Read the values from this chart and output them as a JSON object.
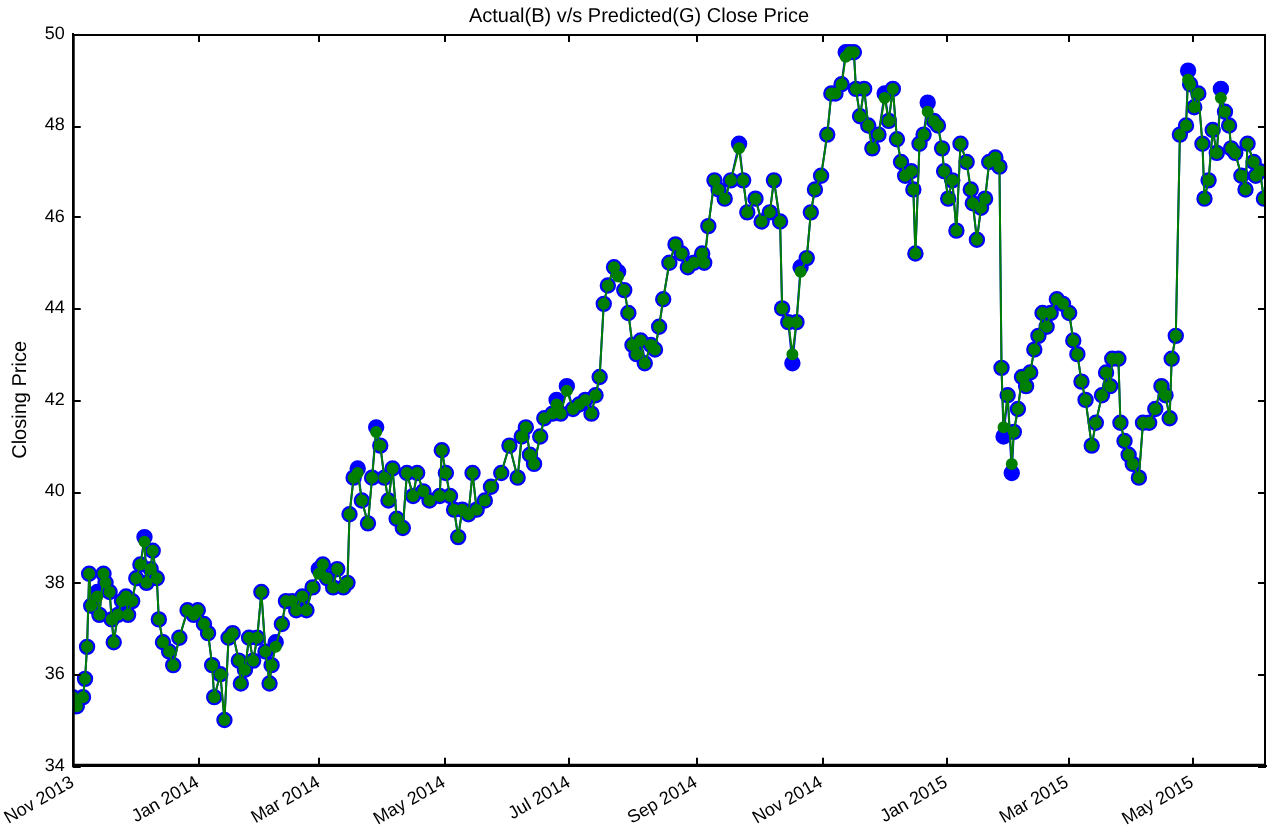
{
  "chart_data": {
    "type": "line",
    "title": "Actual(B) v/s Predicted(G) Close Price",
    "ylabel": "Closing Price",
    "x": [
      "2013-11-01",
      "2013-11-03",
      "2013-11-06",
      "2013-11-07",
      "2013-11-08",
      "2013-11-09",
      "2013-11-10",
      "2013-11-13",
      "2013-11-14",
      "2013-11-16",
      "2013-11-17",
      "2013-11-19",
      "2013-11-20",
      "2013-11-21",
      "2013-11-23",
      "2013-11-25",
      "2013-11-27",
      "2013-11-28",
      "2013-11-30",
      "2013-12-02",
      "2013-12-04",
      "2013-12-06",
      "2013-12-07",
      "2013-12-09",
      "2013-12-10",
      "2013-12-12",
      "2013-12-13",
      "2013-12-15",
      "2013-12-18",
      "2013-12-20",
      "2013-12-23",
      "2013-12-27",
      "2013-12-30",
      "2014-01-01",
      "2014-01-04",
      "2014-01-06",
      "2014-01-08",
      "2014-01-09",
      "2014-01-12",
      "2014-01-14",
      "2014-01-16",
      "2014-01-18",
      "2014-01-21",
      "2014-01-22",
      "2014-01-24",
      "2014-01-26",
      "2014-01-28",
      "2014-01-30",
      "2014-02-01",
      "2014-02-03",
      "2014-02-05",
      "2014-02-06",
      "2014-02-08",
      "2014-02-11",
      "2014-02-13",
      "2014-02-16",
      "2014-02-18",
      "2014-02-21",
      "2014-02-23",
      "2014-02-26",
      "2014-03-01",
      "2014-03-03",
      "2014-03-05",
      "2014-03-08",
      "2014-03-10",
      "2014-03-13",
      "2014-03-15",
      "2014-03-16",
      "2014-03-18",
      "2014-03-20",
      "2014-03-22",
      "2014-03-25",
      "2014-03-27",
      "2014-03-29",
      "2014-03-31",
      "2014-04-02",
      "2014-04-04",
      "2014-04-06",
      "2014-04-08",
      "2014-04-11",
      "2014-04-13",
      "2014-04-16",
      "2014-04-18",
      "2014-04-21",
      "2014-04-24",
      "2014-04-29",
      "2014-04-30",
      "2014-05-02",
      "2014-05-04",
      "2014-05-06",
      "2014-05-08",
      "2014-05-10",
      "2014-05-13",
      "2014-05-15",
      "2014-05-17",
      "2014-05-21",
      "2014-05-24",
      "2014-05-29",
      "2014-06-02",
      "2014-06-06",
      "2014-06-08",
      "2014-06-10",
      "2014-06-12",
      "2014-06-14",
      "2014-06-17",
      "2014-06-19",
      "2014-06-23",
      "2014-06-25",
      "2014-06-27",
      "2014-06-30",
      "2014-07-03",
      "2014-07-06",
      "2014-07-09",
      "2014-07-12",
      "2014-07-14",
      "2014-07-16",
      "2014-07-18",
      "2014-07-20",
      "2014-07-23",
      "2014-07-25",
      "2014-07-28",
      "2014-07-30",
      "2014-08-01",
      "2014-08-03",
      "2014-08-05",
      "2014-08-07",
      "2014-08-10",
      "2014-08-12",
      "2014-08-14",
      "2014-08-16",
      "2014-08-19",
      "2014-08-22",
      "2014-08-25",
      "2014-08-28",
      "2014-08-31",
      "2014-09-04",
      "2014-09-05",
      "2014-09-07",
      "2014-09-10",
      "2014-09-12",
      "2014-09-15",
      "2014-09-18",
      "2014-09-22",
      "2014-09-24",
      "2014-09-26",
      "2014-09-30",
      "2014-10-03",
      "2014-10-07",
      "2014-10-09",
      "2014-10-12",
      "2014-10-13",
      "2014-10-16",
      "2014-10-18",
      "2014-10-20",
      "2014-10-22",
      "2014-10-25",
      "2014-10-27",
      "2014-10-29",
      "2014-11-01",
      "2014-11-04",
      "2014-11-06",
      "2014-11-08",
      "2014-11-11",
      "2014-11-13",
      "2014-11-15",
      "2014-11-17",
      "2014-11-18",
      "2014-11-20",
      "2014-11-22",
      "2014-11-24",
      "2014-11-26",
      "2014-11-29",
      "2014-12-02",
      "2014-12-04",
      "2014-12-06",
      "2014-12-08",
      "2014-12-10",
      "2014-12-12",
      "2014-12-15",
      "2014-12-16",
      "2014-12-17",
      "2014-12-19",
      "2014-12-21",
      "2014-12-23",
      "2014-12-26",
      "2014-12-28",
      "2014-12-30",
      "2014-12-31",
      "2015-01-02",
      "2015-01-04",
      "2015-01-06",
      "2015-01-08",
      "2015-01-11",
      "2015-01-13",
      "2015-01-14",
      "2015-01-16",
      "2015-01-18",
      "2015-01-20",
      "2015-01-22",
      "2015-01-25",
      "2015-01-27",
      "2015-01-28",
      "2015-01-29",
      "2015-01-31",
      "2015-02-02",
      "2015-02-03",
      "2015-02-05",
      "2015-02-07",
      "2015-02-09",
      "2015-02-11",
      "2015-02-13",
      "2015-02-15",
      "2015-02-17",
      "2015-02-19",
      "2015-02-21",
      "2015-02-24",
      "2015-02-27",
      "2015-03-02",
      "2015-03-04",
      "2015-03-06",
      "2015-03-08",
      "2015-03-10",
      "2015-03-13",
      "2015-03-15",
      "2015-03-18",
      "2015-03-20",
      "2015-03-22",
      "2015-03-23",
      "2015-03-26",
      "2015-03-27",
      "2015-03-29",
      "2015-03-31",
      "2015-04-02",
      "2015-04-05",
      "2015-04-07",
      "2015-04-10",
      "2015-04-13",
      "2015-04-16",
      "2015-04-18",
      "2015-04-20",
      "2015-04-21",
      "2015-04-23",
      "2015-04-25",
      "2015-04-28",
      "2015-04-29",
      "2015-04-30",
      "2015-05-02",
      "2015-05-04",
      "2015-05-06",
      "2015-05-07",
      "2015-05-09",
      "2015-05-11",
      "2015-05-13",
      "2015-05-15",
      "2015-05-17",
      "2015-05-19",
      "2015-05-20",
      "2015-05-22",
      "2015-05-25",
      "2015-05-27",
      "2015-05-28",
      "2015-05-31",
      "2015-06-01",
      "2015-06-03",
      "2015-06-05"
    ],
    "series": [
      {
        "color": "#0000ff",
        "values": [
          35.5,
          35.3,
          35.5,
          35.9,
          36.6,
          38.2,
          37.5,
          37.8,
          37.3,
          38.2,
          38.0,
          37.8,
          37.2,
          36.7,
          37.3,
          37.6,
          37.7,
          37.3,
          37.6,
          38.1,
          38.4,
          39.0,
          38.0,
          38.3,
          38.7,
          38.1,
          37.2,
          36.7,
          36.5,
          36.2,
          36.8,
          37.4,
          37.3,
          37.4,
          37.1,
          36.9,
          36.2,
          35.5,
          36.0,
          35.0,
          36.8,
          36.9,
          36.3,
          35.8,
          36.1,
          36.8,
          36.3,
          36.8,
          37.8,
          36.5,
          35.8,
          36.2,
          36.7,
          37.1,
          37.6,
          37.6,
          37.4,
          37.7,
          37.4,
          37.9,
          38.3,
          38.4,
          38.1,
          37.9,
          38.3,
          37.9,
          38.0,
          39.5,
          40.3,
          40.5,
          39.8,
          39.3,
          40.3,
          41.4,
          41.0,
          40.3,
          39.8,
          40.5,
          39.4,
          39.2,
          40.4,
          39.9,
          40.4,
          40.0,
          39.8,
          39.9,
          40.9,
          40.4,
          39.9,
          39.6,
          39.0,
          39.6,
          39.5,
          40.4,
          39.6,
          39.8,
          40.1,
          40.4,
          41.0,
          40.3,
          41.2,
          41.4,
          40.8,
          40.6,
          41.2,
          41.6,
          41.7,
          42.0,
          41.7,
          42.3,
          41.8,
          41.9,
          42.0,
          41.7,
          42.1,
          42.5,
          44.1,
          44.5,
          44.9,
          44.8,
          44.4,
          43.9,
          43.2,
          43.0,
          43.3,
          42.8,
          43.2,
          43.1,
          43.6,
          44.2,
          45.0,
          45.4,
          45.2,
          44.9,
          45.0,
          45.2,
          45.0,
          45.8,
          46.8,
          46.6,
          46.4,
          46.8,
          47.6,
          46.8,
          46.1,
          46.4,
          45.9,
          46.1,
          46.8,
          45.9,
          44.0,
          43.7,
          42.8,
          43.7,
          44.9,
          45.1,
          46.1,
          46.6,
          46.9,
          47.8,
          48.7,
          48.7,
          48.9,
          49.6,
          49.6,
          49.6,
          48.8,
          48.2,
          48.8,
          48.0,
          47.5,
          47.8,
          48.7,
          48.1,
          48.8,
          47.7,
          47.2,
          46.9,
          47.0,
          46.6,
          45.2,
          47.6,
          47.8,
          48.5,
          48.1,
          48.0,
          47.5,
          47.0,
          46.4,
          46.8,
          45.7,
          47.6,
          47.2,
          46.6,
          46.3,
          45.5,
          46.2,
          46.4,
          47.2,
          47.3,
          47.1,
          42.7,
          41.2,
          42.1,
          40.4,
          41.3,
          41.8,
          42.5,
          42.3,
          42.6,
          43.1,
          43.4,
          43.9,
          43.6,
          43.9,
          44.2,
          44.1,
          43.9,
          43.3,
          43.0,
          42.4,
          42.0,
          41.0,
          41.5,
          42.1,
          42.6,
          42.3,
          42.9,
          42.9,
          41.5,
          41.1,
          40.8,
          40.6,
          40.3,
          41.5,
          41.5,
          41.8,
          42.3,
          42.1,
          41.6,
          42.9,
          43.4,
          47.8,
          48.0,
          49.2,
          48.9,
          48.4,
          48.7,
          47.6,
          46.4,
          46.8,
          47.9,
          47.4,
          48.8,
          48.3,
          48.0,
          47.5,
          47.4,
          46.9,
          46.6,
          47.6,
          47.2,
          46.9,
          47.0,
          46.4
        ]
      },
      {
        "color": "#007f00",
        "values": [
          35.5,
          35.3,
          35.5,
          35.9,
          36.6,
          38.2,
          37.5,
          37.7,
          37.3,
          38.2,
          38.0,
          37.8,
          37.2,
          36.7,
          37.3,
          37.6,
          37.7,
          37.3,
          37.6,
          38.1,
          38.4,
          38.9,
          38.0,
          38.3,
          38.7,
          38.1,
          37.2,
          36.7,
          36.5,
          36.2,
          36.8,
          37.4,
          37.3,
          37.4,
          37.1,
          36.9,
          36.2,
          35.5,
          36.0,
          35.0,
          36.8,
          36.9,
          36.3,
          35.8,
          36.1,
          36.8,
          36.3,
          36.8,
          37.8,
          36.5,
          35.8,
          36.2,
          36.6,
          37.1,
          37.6,
          37.6,
          37.4,
          37.7,
          37.4,
          37.9,
          38.2,
          38.4,
          38.1,
          37.9,
          38.3,
          37.9,
          38.0,
          39.5,
          40.3,
          40.4,
          39.8,
          39.3,
          40.3,
          41.3,
          41.0,
          40.3,
          39.8,
          40.5,
          39.4,
          39.2,
          40.4,
          39.9,
          40.4,
          40.0,
          39.8,
          39.9,
          40.9,
          40.4,
          39.9,
          39.6,
          39.0,
          39.6,
          39.5,
          40.4,
          39.6,
          39.8,
          40.1,
          40.4,
          41.0,
          40.3,
          41.2,
          41.4,
          40.8,
          40.6,
          41.2,
          41.6,
          41.7,
          41.9,
          41.7,
          42.2,
          41.8,
          41.9,
          42.0,
          41.7,
          42.1,
          42.5,
          44.1,
          44.5,
          44.9,
          44.7,
          44.4,
          43.9,
          43.2,
          43.0,
          43.3,
          42.8,
          43.2,
          43.1,
          43.6,
          44.2,
          45.0,
          45.4,
          45.2,
          44.9,
          45.0,
          45.2,
          45.0,
          45.8,
          46.8,
          46.6,
          46.4,
          46.8,
          47.5,
          46.8,
          46.1,
          46.4,
          45.9,
          46.1,
          46.8,
          45.9,
          44.0,
          43.7,
          43.0,
          43.7,
          44.8,
          45.1,
          46.1,
          46.6,
          46.9,
          47.8,
          48.7,
          48.7,
          48.9,
          49.5,
          49.6,
          49.6,
          48.8,
          48.2,
          48.8,
          48.0,
          47.5,
          47.8,
          48.6,
          48.1,
          48.8,
          47.7,
          47.2,
          46.9,
          47.0,
          46.6,
          45.2,
          47.6,
          47.8,
          48.3,
          48.1,
          48.0,
          47.5,
          47.0,
          46.4,
          46.8,
          45.7,
          47.6,
          47.2,
          46.6,
          46.3,
          45.5,
          46.2,
          46.4,
          47.2,
          47.3,
          47.1,
          42.7,
          41.4,
          42.1,
          40.6,
          41.3,
          41.8,
          42.5,
          42.3,
          42.6,
          43.1,
          43.4,
          43.9,
          43.6,
          43.9,
          44.2,
          44.1,
          43.9,
          43.3,
          43.0,
          42.4,
          42.0,
          41.0,
          41.5,
          42.1,
          42.6,
          42.3,
          42.9,
          42.9,
          41.5,
          41.1,
          40.8,
          40.6,
          40.3,
          41.5,
          41.5,
          41.8,
          42.3,
          42.1,
          41.6,
          42.9,
          43.4,
          47.8,
          48.0,
          49.0,
          48.9,
          48.4,
          48.7,
          47.6,
          46.4,
          46.8,
          47.9,
          47.4,
          48.6,
          48.3,
          48.0,
          47.5,
          47.4,
          46.9,
          46.6,
          47.6,
          47.2,
          46.9,
          47.0,
          46.4
        ]
      }
    ],
    "xlim": [
      "2013-11-01",
      "2015-06-06"
    ],
    "xticks": [
      {
        "value": "2013-11-01",
        "label": "Nov 2013"
      },
      {
        "value": "2014-01-01",
        "label": "Jan 2014"
      },
      {
        "value": "2014-03-01",
        "label": "Mar 2014"
      },
      {
        "value": "2014-05-01",
        "label": "May 2014"
      },
      {
        "value": "2014-07-01",
        "label": "Jul 2014"
      },
      {
        "value": "2014-09-01",
        "label": "Sep 2014"
      },
      {
        "value": "2014-11-01",
        "label": "Nov 2014"
      },
      {
        "value": "2015-01-01",
        "label": "Jan 2015"
      },
      {
        "value": "2015-03-01",
        "label": "Mar 2015"
      },
      {
        "value": "2015-05-01",
        "label": "May 2015"
      }
    ],
    "ylim": [
      34,
      50
    ],
    "yticks": [
      34,
      36,
      38,
      40,
      42,
      44,
      46,
      48,
      50
    ],
    "grid": false,
    "legend": false,
    "marker": "circle"
  }
}
